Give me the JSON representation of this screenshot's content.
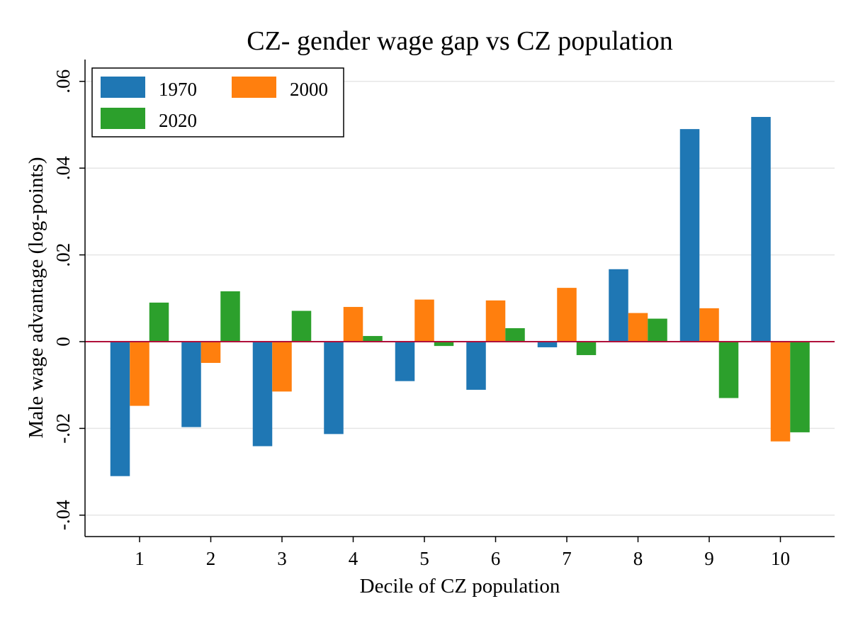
{
  "chart_data": {
    "type": "bar",
    "title": "CZ- gender wage gap vs CZ population",
    "xlabel": "Decile of CZ population",
    "ylabel": "Male wage advantage (log-points)",
    "categories": [
      "1",
      "2",
      "3",
      "4",
      "5",
      "6",
      "7",
      "8",
      "9",
      "10"
    ],
    "series": [
      {
        "name": "1970",
        "color": "#1f77b4",
        "values": [
          -0.031,
          -0.0197,
          -0.0241,
          -0.0213,
          -0.0091,
          -0.0111,
          -0.0013,
          0.0167,
          0.049,
          0.0518
        ]
      },
      {
        "name": "2000",
        "color": "#ff7f0e",
        "values": [
          -0.0148,
          -0.0049,
          -0.0115,
          0.008,
          0.0097,
          0.0095,
          0.0124,
          0.0066,
          0.0077,
          -0.023
        ]
      },
      {
        "name": "2020",
        "color": "#2ca02c",
        "values": [
          0.009,
          0.0116,
          0.0071,
          0.0013,
          -0.001,
          0.0031,
          -0.0031,
          0.0053,
          -0.013,
          -0.0209
        ]
      }
    ],
    "ylim": [
      -0.045,
      0.065
    ],
    "yticks": [
      -0.04,
      -0.02,
      0,
      0.02,
      0.04,
      0.06
    ],
    "ytick_labels": [
      "-.04",
      "-.02",
      "0",
      ".02",
      ".04",
      ".06"
    ],
    "grid": true,
    "zero_line_color": "#b0103a",
    "legend_position": "top-left"
  }
}
